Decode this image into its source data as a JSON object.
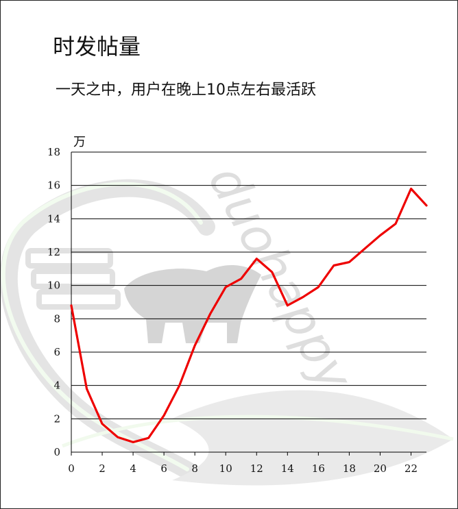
{
  "page": {
    "title": "时发帖量",
    "subtitle": "一天之中，用户在晚上10点左右最活跃",
    "watermark_text": "duohappy"
  },
  "chart_data": {
    "type": "line",
    "title": "时发帖量",
    "subtitle": "一天之中，用户在晚上10点左右最活跃",
    "ylabel": "万",
    "xlabel": "",
    "x": [
      0,
      1,
      2,
      3,
      4,
      5,
      6,
      7,
      8,
      9,
      10,
      11,
      12,
      13,
      14,
      15,
      16,
      17,
      18,
      19,
      20,
      21,
      22,
      23
    ],
    "series": [
      {
        "values": [
          8.8,
          3.8,
          1.7,
          0.9,
          0.6,
          0.85,
          2.2,
          4.0,
          6.4,
          8.3,
          9.9,
          10.4,
          11.6,
          10.8,
          8.8,
          9.3,
          9.9,
          11.2,
          11.4,
          12.2,
          13.0,
          13.7,
          15.8,
          14.8
        ]
      }
    ],
    "xlim": [
      0,
      23
    ],
    "ylim": [
      0,
      18
    ],
    "xticks": [
      0,
      2,
      4,
      6,
      8,
      10,
      12,
      14,
      16,
      18,
      20,
      22
    ],
    "yticks": [
      0,
      2,
      4,
      6,
      8,
      10,
      12,
      14,
      16,
      18
    ],
    "grid": "horizontal",
    "line_color": "#ee0000"
  }
}
